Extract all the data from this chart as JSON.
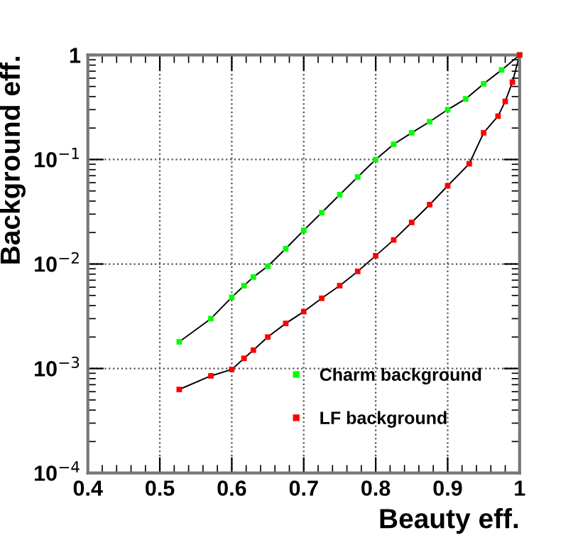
{
  "chart_data": {
    "type": "line",
    "xlabel": "Beauty eff.",
    "ylabel": "Background eff.",
    "log": "y",
    "grid": true,
    "legend": "bottom right",
    "marker": "square",
    "line_style": "solid",
    "xlim": [
      0.4,
      1
    ],
    "xticks": [
      0.4,
      0.5,
      0.6,
      0.7,
      0.8,
      0.9,
      1
    ],
    "ylim": [
      0.0001,
      1
    ],
    "yticks": [
      {
        "value": 0.0001,
        "label": "10$^{−4}$"
      },
      {
        "value": 0.001,
        "label": "10$^{−3}$"
      },
      {
        "value": 0.01,
        "label": "10$^{−2}$"
      },
      {
        "value": 0.1,
        "label": "10$^{−1}$"
      },
      1
    ],
    "series": [
      {
        "name": "Charm background",
        "color": "#00ff00",
        "x": [
          0.527,
          0.571,
          0.6,
          0.617,
          0.63,
          0.65,
          0.675,
          0.7,
          0.725,
          0.75,
          0.775,
          0.8,
          0.825,
          0.85,
          0.875,
          0.9,
          0.925,
          0.95,
          0.975,
          1
        ],
        "values": [
          0.0018,
          0.003,
          0.0048,
          0.0062,
          0.0075,
          0.0095,
          0.014,
          0.021,
          0.031,
          0.046,
          0.068,
          0.1,
          0.14,
          0.18,
          0.23,
          0.3,
          0.38,
          0.53,
          0.72,
          1
        ]
      },
      {
        "name": "LF background",
        "color": "#ff0000",
        "x": [
          0.527,
          0.571,
          0.6,
          0.617,
          0.63,
          0.65,
          0.675,
          0.7,
          0.725,
          0.75,
          0.775,
          0.8,
          0.825,
          0.85,
          0.875,
          0.9,
          0.93,
          0.95,
          0.97,
          0.98,
          0.99,
          1
        ],
        "values": [
          0.00063,
          0.00085,
          0.00098,
          0.00125,
          0.0015,
          0.002,
          0.0027,
          0.0035,
          0.0047,
          0.0062,
          0.0085,
          0.012,
          0.017,
          0.025,
          0.037,
          0.056,
          0.091,
          0.18,
          0.26,
          0.36,
          0.55,
          1
        ]
      }
    ]
  }
}
